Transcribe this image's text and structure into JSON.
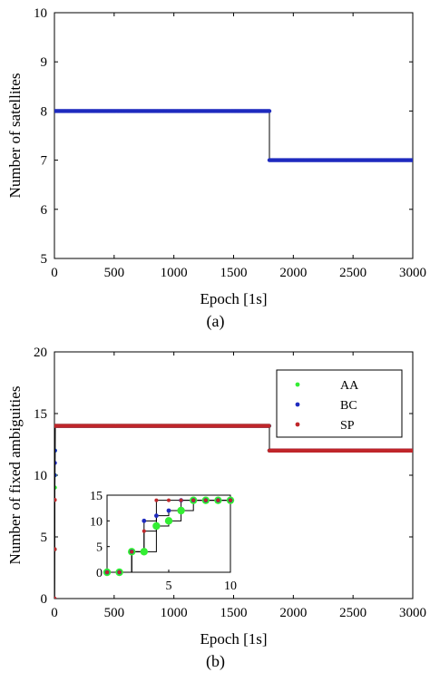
{
  "chart_data": [
    {
      "id": "a",
      "type": "line",
      "caption": "(a)",
      "xlabel": "Epoch [1s]",
      "ylabel": "Number of satellites",
      "xlim": [
        0,
        3000
      ],
      "ylim": [
        5,
        10
      ],
      "xticks": [
        0,
        500,
        1000,
        1500,
        2000,
        2500,
        3000
      ],
      "xtick_labels": [
        "0",
        "500",
        "1000",
        "1500",
        "2000",
        "2500",
        "3000"
      ],
      "yticks": [
        5,
        6,
        7,
        8,
        9,
        10
      ],
      "ytick_labels": [
        "5",
        "6",
        "7",
        "8",
        "9",
        "10"
      ],
      "grid": false,
      "series": [
        {
          "color": "#1f2bbf",
          "points": [
            [
              0,
              8
            ],
            [
              1800,
              8
            ],
            [
              1800,
              7
            ],
            [
              3000,
              7
            ]
          ]
        }
      ]
    },
    {
      "id": "b",
      "type": "line",
      "caption": "(b)",
      "xlabel": "Epoch [1s]",
      "ylabel": "Number of fixed ambiguities",
      "xlim": [
        0,
        3000
      ],
      "ylim": [
        0,
        20
      ],
      "xticks": [
        0,
        500,
        1000,
        1500,
        2000,
        2500,
        3000
      ],
      "xtick_labels": [
        "0",
        "500",
        "1000",
        "1500",
        "2000",
        "2500",
        "3000"
      ],
      "yticks": [
        0,
        5,
        10,
        15,
        20
      ],
      "ytick_labels": [
        "0",
        "5",
        "10",
        "15",
        "20"
      ],
      "grid": false,
      "legend_position": "top-right",
      "series": [
        {
          "name": "AA",
          "color": "#33ee33",
          "points": [
            [
              0,
              0
            ],
            [
              1,
              0
            ],
            [
              2,
              4
            ],
            [
              3,
              4
            ],
            [
              4,
              9
            ],
            [
              5,
              10
            ],
            [
              6,
              12
            ],
            [
              7,
              14
            ],
            [
              1800,
              14
            ],
            [
              1800,
              12
            ],
            [
              3000,
              12
            ]
          ]
        },
        {
          "name": "BC",
          "color": "#1f2bbf",
          "points": [
            [
              0,
              0
            ],
            [
              1,
              0
            ],
            [
              2,
              4
            ],
            [
              3,
              10
            ],
            [
              4,
              11
            ],
            [
              5,
              12
            ],
            [
              6,
              14
            ],
            [
              1800,
              14
            ],
            [
              1800,
              12
            ],
            [
              3000,
              12
            ]
          ]
        },
        {
          "name": "SP",
          "color": "#c0262a",
          "points": [
            [
              0,
              0
            ],
            [
              1,
              0
            ],
            [
              2,
              4
            ],
            [
              3,
              8
            ],
            [
              4,
              14
            ],
            [
              1800,
              14
            ],
            [
              1800,
              12
            ],
            [
              3000,
              12
            ]
          ]
        }
      ],
      "inset": {
        "xlim": [
          0,
          10
        ],
        "ylim": [
          0,
          15
        ],
        "xticks": [
          5,
          10
        ],
        "xtick_labels": [
          "5",
          "10"
        ],
        "yticks": [
          0,
          5,
          10,
          15
        ],
        "ytick_labels": [
          "0",
          "5",
          "10",
          "15"
        ],
        "series": [
          {
            "name": "AA",
            "color": "#33ee33",
            "points": [
              [
                0,
                0
              ],
              [
                1,
                0
              ],
              [
                2,
                4
              ],
              [
                3,
                4
              ],
              [
                4,
                9
              ],
              [
                5,
                10
              ],
              [
                6,
                12
              ],
              [
                7,
                14
              ],
              [
                8,
                14
              ],
              [
                9,
                14
              ],
              [
                10,
                14
              ]
            ]
          },
          {
            "name": "BC",
            "color": "#1f2bbf",
            "points": [
              [
                0,
                0
              ],
              [
                1,
                0
              ],
              [
                2,
                4
              ],
              [
                3,
                10
              ],
              [
                4,
                11
              ],
              [
                5,
                12
              ],
              [
                6,
                14
              ],
              [
                7,
                14
              ],
              [
                8,
                14
              ],
              [
                9,
                14
              ],
              [
                10,
                14
              ]
            ]
          },
          {
            "name": "SP",
            "color": "#c0262a",
            "points": [
              [
                0,
                0
              ],
              [
                1,
                0
              ],
              [
                2,
                4
              ],
              [
                3,
                8
              ],
              [
                4,
                14
              ],
              [
                5,
                14
              ],
              [
                6,
                14
              ],
              [
                7,
                14
              ],
              [
                8,
                14
              ],
              [
                9,
                14
              ],
              [
                10,
                14
              ]
            ]
          }
        ]
      }
    }
  ]
}
